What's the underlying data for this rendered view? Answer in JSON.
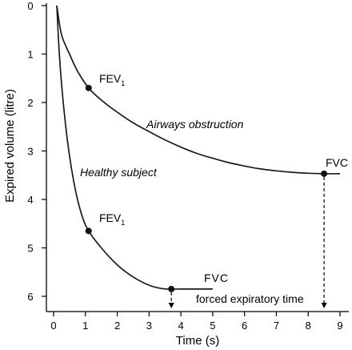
{
  "chart_data": {
    "type": "line",
    "xlabel": "Time (s)",
    "ylabel": "Expired volume (litre)",
    "xlim": [
      0,
      9
    ],
    "ylim": [
      0,
      6
    ],
    "y_inverted": true,
    "x_ticks": [
      "0",
      "1",
      "2",
      "3",
      "4",
      "5",
      "6",
      "7",
      "8",
      "9"
    ],
    "y_ticks": [
      "0",
      "1",
      "2",
      "3",
      "4",
      "5",
      "6"
    ],
    "series": [
      {
        "name": "Airways obstruction",
        "x": [
          0.1,
          0.25,
          0.5,
          0.75,
          1.1,
          1.5,
          2,
          2.5,
          3,
          3.5,
          4,
          4.5,
          5,
          5.5,
          6,
          6.5,
          7,
          7.5,
          8,
          8.5,
          9
        ],
        "y": [
          0.0,
          0.6,
          1.0,
          1.35,
          1.7,
          1.95,
          2.2,
          2.42,
          2.6,
          2.77,
          2.92,
          3.05,
          3.15,
          3.24,
          3.31,
          3.37,
          3.41,
          3.44,
          3.46,
          3.47,
          3.47
        ]
      },
      {
        "name": "Healthy subject",
        "x": [
          0.1,
          0.2,
          0.35,
          0.5,
          0.7,
          0.9,
          1.1,
          1.5,
          2,
          2.5,
          3,
          3.4,
          3.7,
          4,
          4.5,
          5
        ],
        "y": [
          0.0,
          1.2,
          2.3,
          3.1,
          3.85,
          4.35,
          4.65,
          5.0,
          5.35,
          5.6,
          5.77,
          5.84,
          5.85,
          5.85,
          5.85,
          5.85
        ]
      }
    ],
    "points": [
      {
        "label": "FEV1",
        "series": "Airways obstruction",
        "x": 1.1,
        "y": 1.7
      },
      {
        "label": "FVC",
        "series": "Airways obstruction",
        "x": 8.5,
        "y": 3.47
      },
      {
        "label": "FEV1",
        "series": "Healthy subject",
        "x": 1.1,
        "y": 4.65
      },
      {
        "label": "FVC",
        "series": "Healthy subject",
        "x": 3.7,
        "y": 5.85
      }
    ],
    "annotations": {
      "fev1_main": "FEV",
      "fev1_sub": "1",
      "fvc": "FVC",
      "airways": "Airways obstruction",
      "healthy": "Healthy subject",
      "forced": "forced expiratory time"
    }
  }
}
